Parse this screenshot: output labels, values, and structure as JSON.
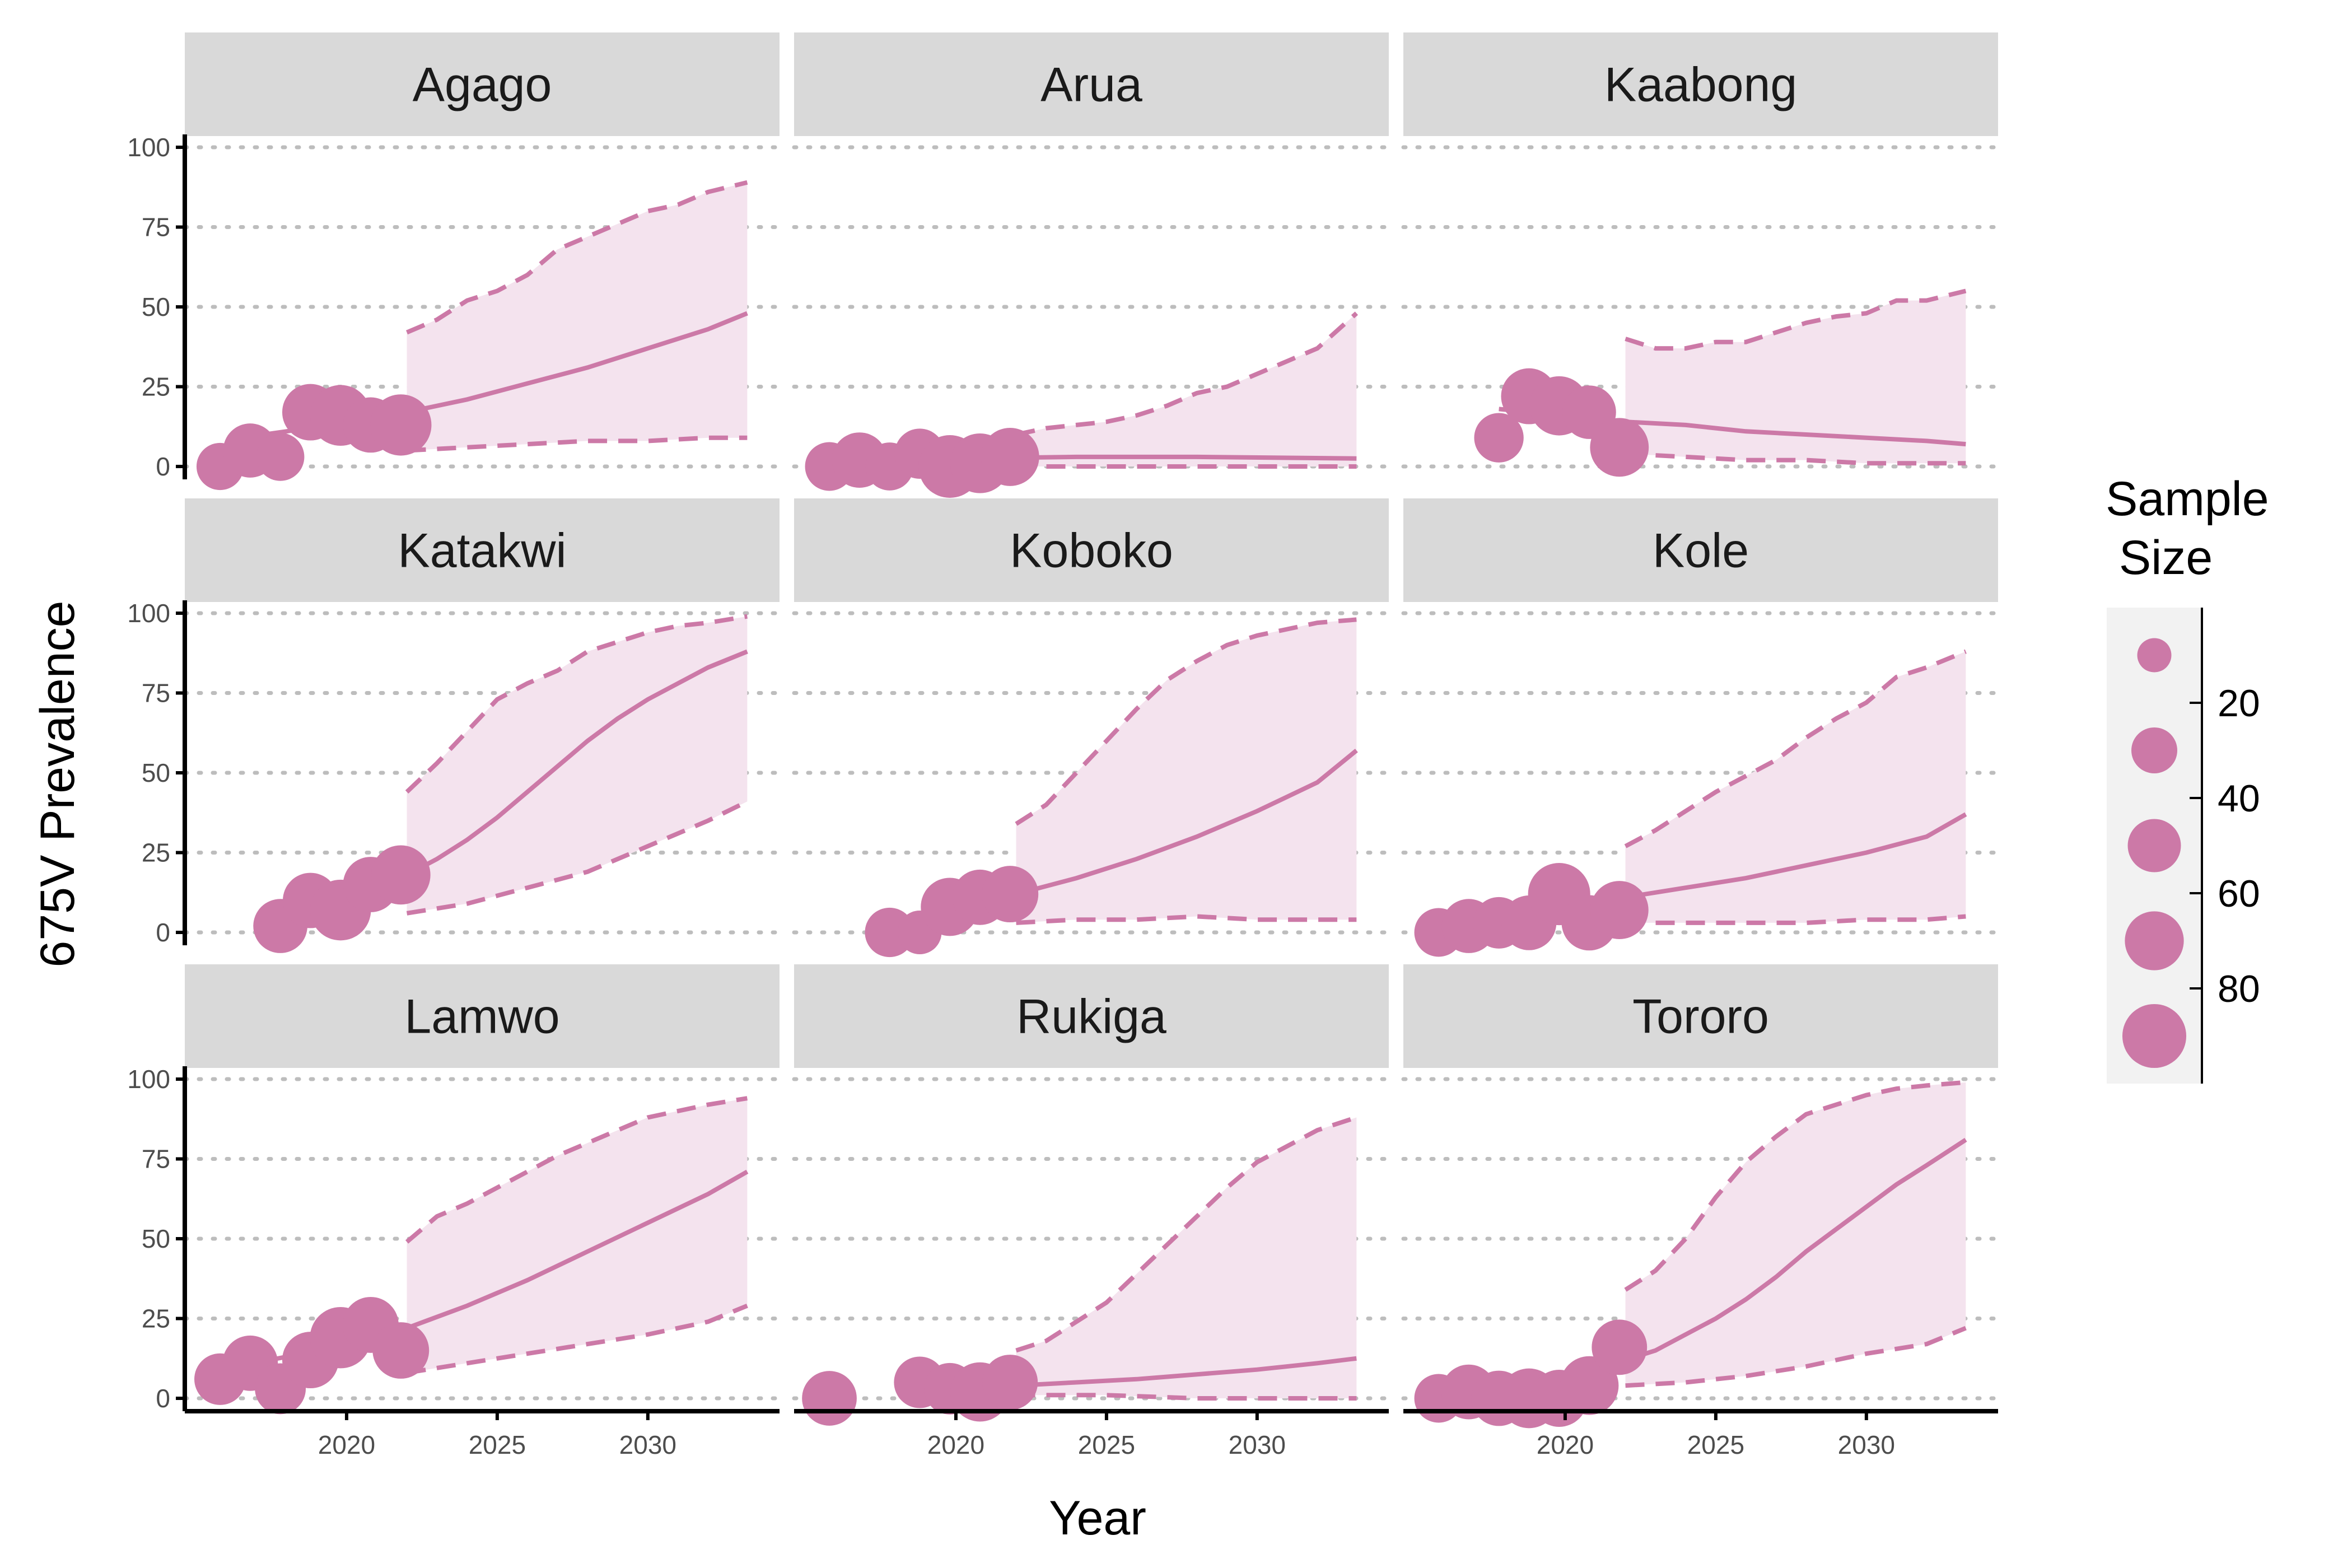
{
  "chart_data": {
    "type": "scatter",
    "xlabel": "Year",
    "ylabel": "675V Prevalence",
    "xlim": [
      2015,
      2034
    ],
    "ylim": [
      0,
      100
    ],
    "x_ticks": [
      2020,
      2025,
      2030
    ],
    "y_ticks": [
      0,
      25,
      50,
      75,
      100
    ],
    "grid": "horizontal dotted",
    "colors": {
      "point": "#CC79A7",
      "ribbon": "#F4E3EE",
      "strip": "#D9D9D9",
      "grid": "#BDBDBD"
    },
    "legend": {
      "title_lines": [
        "Sample",
        " Size"
      ],
      "placement": "right",
      "values": [
        20,
        40,
        60,
        80
      ],
      "range": [
        5,
        100
      ]
    },
    "panels": [
      {
        "name": "Agago",
        "points": [
          {
            "x": 2015.8,
            "y": 0,
            "n": 28
          },
          {
            "x": 2016.8,
            "y": 5,
            "n": 48
          },
          {
            "x": 2017.8,
            "y": 3,
            "n": 30
          },
          {
            "x": 2018.8,
            "y": 17,
            "n": 56
          },
          {
            "x": 2019.8,
            "y": 16,
            "n": 72
          },
          {
            "x": 2020.8,
            "y": 13,
            "n": 52
          },
          {
            "x": 2021.8,
            "y": 13,
            "n": 74
          }
        ],
        "fit": {
          "x": [
            2016.5,
            2018,
            2020,
            2022,
            2024,
            2026,
            2028,
            2030,
            2032,
            2033.3
          ],
          "y": [
            9,
            11,
            14,
            17,
            21,
            26,
            31,
            37,
            43,
            48
          ]
        },
        "upper": {
          "x": [
            2022,
            2023,
            2024,
            2025,
            2026,
            2027,
            2028,
            2029,
            2030,
            2031,
            2032,
            2033.3
          ],
          "y": [
            42,
            46,
            52,
            55,
            60,
            68,
            72,
            76,
            80,
            82,
            86,
            89
          ]
        },
        "lower": {
          "x": [
            2022,
            2024,
            2026,
            2028,
            2030,
            2032,
            2033.3
          ],
          "y": [
            5,
            6,
            7,
            8,
            8,
            9,
            9
          ]
        }
      },
      {
        "name": "Arua",
        "points": [
          {
            "x": 2015.8,
            "y": 0,
            "n": 32
          },
          {
            "x": 2016.8,
            "y": 2,
            "n": 52
          },
          {
            "x": 2017.8,
            "y": 0,
            "n": 30
          },
          {
            "x": 2018.8,
            "y": 4,
            "n": 36
          },
          {
            "x": 2019.8,
            "y": 0,
            "n": 80
          },
          {
            "x": 2020.8,
            "y": 1,
            "n": 68
          },
          {
            "x": 2021.8,
            "y": 3,
            "n": 62
          }
        ],
        "fit": {
          "x": [
            2016.5,
            2020,
            2024,
            2028,
            2033.3
          ],
          "y": [
            2,
            2.5,
            3,
            3,
            2.5
          ]
        },
        "upper": {
          "x": [
            2022,
            2023,
            2024,
            2025,
            2026,
            2027,
            2028,
            2029,
            2030,
            2031,
            2032,
            2033.3
          ],
          "y": [
            10,
            12,
            13,
            14,
            16,
            19,
            23,
            25,
            29,
            33,
            37,
            48
          ]
        },
        "lower": {
          "x": [
            2022,
            2025,
            2028,
            2031,
            2033.3
          ],
          "y": [
            0,
            0,
            0,
            0,
            0
          ]
        }
      },
      {
        "name": "Kaabong",
        "points": [
          {
            "x": 2017.8,
            "y": 9,
            "n": 34
          },
          {
            "x": 2018.8,
            "y": 22,
            "n": 54
          },
          {
            "x": 2019.8,
            "y": 19,
            "n": 66
          },
          {
            "x": 2020.8,
            "y": 17,
            "n": 46
          },
          {
            "x": 2021.8,
            "y": 6,
            "n": 64
          }
        ],
        "fit": {
          "x": [
            2017.8,
            2020,
            2022,
            2024,
            2026,
            2028,
            2030,
            2032,
            2033.3
          ],
          "y": [
            18,
            16,
            14,
            13,
            11,
            10,
            9,
            8,
            7
          ]
        },
        "upper": {
          "x": [
            2022,
            2023,
            2024,
            2025,
            2026,
            2027,
            2028,
            2029,
            2030,
            2031,
            2032,
            2033.3
          ],
          "y": [
            40,
            37,
            37,
            39,
            39,
            42,
            45,
            47,
            48,
            52,
            52,
            55
          ]
        },
        "lower": {
          "x": [
            2022,
            2024,
            2026,
            2028,
            2030,
            2032,
            2033.3
          ],
          "y": [
            4,
            3,
            2,
            2,
            1,
            1,
            1
          ]
        }
      },
      {
        "name": "Katakwi",
        "points": [
          {
            "x": 2017.8,
            "y": 2,
            "n": 48
          },
          {
            "x": 2018.8,
            "y": 10,
            "n": 52
          },
          {
            "x": 2019.8,
            "y": 7,
            "n": 72
          },
          {
            "x": 2020.8,
            "y": 15,
            "n": 52
          },
          {
            "x": 2021.8,
            "y": 18,
            "n": 66
          }
        ],
        "fit": {
          "x": [
            2022,
            2023,
            2024,
            2025,
            2026,
            2027,
            2028,
            2029,
            2030,
            2031,
            2032,
            2033.3
          ],
          "y": [
            18,
            23,
            29,
            36,
            44,
            52,
            60,
            67,
            73,
            78,
            83,
            88
          ]
        },
        "upper": {
          "x": [
            2022,
            2023,
            2024,
            2025,
            2026,
            2027,
            2028,
            2029,
            2030,
            2031,
            2032,
            2033.3
          ],
          "y": [
            44,
            53,
            63,
            73,
            78,
            82,
            88,
            91,
            94,
            96,
            97,
            99
          ]
        },
        "lower": {
          "x": [
            2022,
            2024,
            2026,
            2028,
            2030,
            2032,
            2033.3
          ],
          "y": [
            6,
            9,
            14,
            19,
            27,
            35,
            41
          ]
        }
      },
      {
        "name": "Koboko",
        "points": [
          {
            "x": 2017.8,
            "y": 0,
            "n": 34
          },
          {
            "x": 2018.8,
            "y": 0,
            "n": 20
          },
          {
            "x": 2019.8,
            "y": 8,
            "n": 62
          },
          {
            "x": 2020.8,
            "y": 11,
            "n": 52
          },
          {
            "x": 2021.8,
            "y": 12,
            "n": 56
          }
        ],
        "fit": {
          "x": [
            2019.5,
            2022,
            2024,
            2026,
            2028,
            2030,
            2032,
            2033.3
          ],
          "y": [
            8,
            12,
            17,
            23,
            30,
            38,
            47,
            57
          ]
        },
        "upper": {
          "x": [
            2022,
            2023,
            2024,
            2025,
            2026,
            2027,
            2028,
            2029,
            2030,
            2031,
            2032,
            2033.3
          ],
          "y": [
            34,
            40,
            50,
            60,
            70,
            79,
            85,
            90,
            93,
            95,
            97,
            98
          ]
        },
        "lower": {
          "x": [
            2022,
            2024,
            2026,
            2028,
            2030,
            2032,
            2033.3
          ],
          "y": [
            3,
            4,
            4,
            5,
            4,
            4,
            4
          ]
        }
      },
      {
        "name": "Kole",
        "points": [
          {
            "x": 2015.8,
            "y": 0,
            "n": 32
          },
          {
            "x": 2016.8,
            "y": 2,
            "n": 48
          },
          {
            "x": 2017.8,
            "y": 3,
            "n": 40
          },
          {
            "x": 2018.8,
            "y": 3,
            "n": 50
          },
          {
            "x": 2019.8,
            "y": 12,
            "n": 78
          },
          {
            "x": 2020.8,
            "y": 3,
            "n": 52
          },
          {
            "x": 2021.8,
            "y": 7,
            "n": 62
          }
        ],
        "fit": {
          "x": [
            2016.5,
            2018,
            2020,
            2022,
            2024,
            2026,
            2028,
            2030,
            2032,
            2033.3
          ],
          "y": [
            3,
            5,
            8,
            11,
            14,
            17,
            21,
            25,
            30,
            37
          ]
        },
        "upper": {
          "x": [
            2022,
            2023,
            2024,
            2025,
            2026,
            2027,
            2028,
            2029,
            2030,
            2031,
            2032,
            2033.3
          ],
          "y": [
            27,
            32,
            38,
            44,
            49,
            54,
            61,
            67,
            72,
            80,
            83,
            88
          ]
        },
        "lower": {
          "x": [
            2022,
            2024,
            2026,
            2028,
            2030,
            2032,
            2033.3
          ],
          "y": [
            3,
            3,
            3,
            3,
            4,
            4,
            5
          ]
        }
      },
      {
        "name": "Lamwo",
        "points": [
          {
            "x": 2015.8,
            "y": 6,
            "n": 40
          },
          {
            "x": 2016.8,
            "y": 11,
            "n": 52
          },
          {
            "x": 2017.8,
            "y": 3,
            "n": 38
          },
          {
            "x": 2018.8,
            "y": 12,
            "n": 56
          },
          {
            "x": 2019.8,
            "y": 19,
            "n": 74
          },
          {
            "x": 2020.8,
            "y": 23,
            "n": 54
          },
          {
            "x": 2021.8,
            "y": 15,
            "n": 56
          }
        ],
        "fit": {
          "x": [
            2015.8,
            2018,
            2020,
            2022,
            2024,
            2026,
            2028,
            2030,
            2032,
            2033.3
          ],
          "y": [
            9,
            13,
            17,
            22,
            29,
            37,
            46,
            55,
            64,
            71
          ]
        },
        "upper": {
          "x": [
            2022,
            2023,
            2024,
            2025,
            2026,
            2027,
            2028,
            2029,
            2030,
            2031,
            2032,
            2033.3
          ],
          "y": [
            49,
            57,
            61,
            66,
            71,
            76,
            80,
            84,
            88,
            90,
            92,
            94
          ]
        },
        "lower": {
          "x": [
            2022,
            2024,
            2026,
            2028,
            2030,
            2032,
            2033.3
          ],
          "y": [
            8,
            11,
            14,
            17,
            20,
            24,
            29
          ]
        }
      },
      {
        "name": "Rukiga",
        "points": [
          {
            "x": 2015.8,
            "y": 0,
            "n": 50
          },
          {
            "x": 2018.8,
            "y": 5,
            "n": 40
          },
          {
            "x": 2019.8,
            "y": 3,
            "n": 40
          },
          {
            "x": 2020.8,
            "y": 2,
            "n": 66
          },
          {
            "x": 2021.8,
            "y": 5,
            "n": 52
          }
        ],
        "fit": {
          "x": [
            2020,
            2022,
            2024,
            2026,
            2028,
            2030,
            2032,
            2033.3
          ],
          "y": [
            3,
            4,
            5,
            6,
            7.5,
            9,
            11,
            12.5
          ]
        },
        "upper": {
          "x": [
            2022,
            2023,
            2024,
            2025,
            2026,
            2027,
            2028,
            2029,
            2030,
            2031,
            2032,
            2033.3
          ],
          "y": [
            15,
            18,
            24,
            30,
            39,
            48,
            57,
            66,
            74,
            79,
            84,
            88
          ]
        },
        "lower": {
          "x": [
            2022,
            2025,
            2028,
            2031,
            2033.3
          ],
          "y": [
            1,
            1,
            0,
            0,
            0
          ]
        }
      },
      {
        "name": "Tororo",
        "points": [
          {
            "x": 2015.8,
            "y": 0,
            "n": 32
          },
          {
            "x": 2016.8,
            "y": 2,
            "n": 50
          },
          {
            "x": 2017.8,
            "y": 0,
            "n": 52
          },
          {
            "x": 2018.8,
            "y": 0,
            "n": 68
          },
          {
            "x": 2019.8,
            "y": 0,
            "n": 58
          },
          {
            "x": 2020.8,
            "y": 4,
            "n": 64
          },
          {
            "x": 2021.8,
            "y": 16,
            "n": 52
          }
        ],
        "fit": {
          "x": [
            2016.5,
            2018,
            2020,
            2022,
            2023,
            2024,
            2025,
            2026,
            2027,
            2028,
            2029,
            2030,
            2031,
            2032,
            2033.3
          ],
          "y": [
            3,
            5,
            8,
            12,
            15,
            20,
            25,
            31,
            38,
            46,
            53,
            60,
            67,
            73,
            81
          ]
        },
        "upper": {
          "x": [
            2022,
            2023,
            2024,
            2025,
            2026,
            2027,
            2028,
            2029,
            2030,
            2031,
            2032,
            2033.3
          ],
          "y": [
            34,
            40,
            50,
            63,
            74,
            82,
            89,
            92,
            95,
            97,
            98,
            99
          ]
        },
        "lower": {
          "x": [
            2022,
            2024,
            2026,
            2028,
            2030,
            2032,
            2033.3
          ],
          "y": [
            4,
            5,
            7,
            10,
            14,
            17,
            22
          ]
        }
      }
    ]
  }
}
